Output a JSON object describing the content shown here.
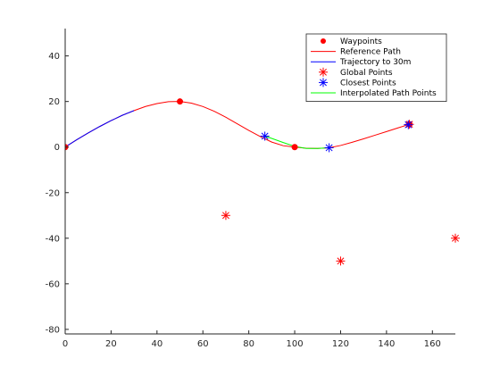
{
  "chart_data": {
    "type": "line",
    "title": "",
    "xlabel": "",
    "ylabel": "",
    "xlim": [
      0,
      170
    ],
    "ylim": [
      -82,
      52
    ],
    "xticks": [
      0,
      20,
      40,
      60,
      80,
      100,
      120,
      140,
      160
    ],
    "yticks": [
      -80,
      -60,
      -40,
      -20,
      0,
      20,
      40
    ],
    "grid": false,
    "legend_position": "top-right",
    "series": [
      {
        "name": "Waypoints",
        "kind": "marker-dot",
        "color": "#ff0000",
        "x": [
          0,
          50,
          100,
          150
        ],
        "y": [
          0,
          20,
          0,
          10
        ]
      },
      {
        "name": "Reference Path",
        "kind": "line",
        "color": "#ff0000",
        "x": [
          0,
          5,
          10,
          15,
          20,
          25,
          30,
          35,
          40,
          45,
          50,
          55,
          60,
          65,
          70,
          75,
          80,
          85,
          90,
          95,
          100,
          105,
          110,
          115,
          120,
          125,
          130,
          135,
          140,
          145,
          150
        ],
        "y": [
          0,
          3.2,
          6.2,
          9.0,
          11.6,
          14.0,
          16.0,
          17.8,
          19.1,
          19.9,
          20.0,
          19.3,
          17.8,
          15.7,
          13.1,
          10.2,
          7.3,
          4.6,
          2.2,
          0.6,
          0.0,
          -0.5,
          -0.6,
          -0.3,
          0.7,
          2.1,
          3.6,
          5.2,
          6.8,
          8.4,
          10.0
        ]
      },
      {
        "name": "Trajectory to 30m",
        "kind": "line",
        "color": "#0000ff",
        "x": [
          0,
          5,
          10,
          15,
          20,
          25,
          30
        ],
        "y": [
          0,
          3.2,
          6.2,
          9.0,
          11.6,
          14.0,
          16.0
        ]
      },
      {
        "name": "Global Points",
        "kind": "marker-star",
        "color": "#ff0000",
        "x": [
          70,
          120,
          170,
          150
        ],
        "y": [
          -30,
          -50,
          -40,
          10
        ]
      },
      {
        "name": "Closest Points",
        "kind": "marker-star",
        "color": "#0000ff",
        "x": [
          87,
          115,
          149.5
        ],
        "y": [
          4.8,
          -0.3,
          9.8
        ]
      },
      {
        "name": "Interpolated Path Points",
        "kind": "line",
        "color": "#00ff00",
        "x": [
          87,
          90,
          95,
          100,
          105,
          110,
          115
        ],
        "y": [
          4.8,
          3.8,
          2.0,
          0.3,
          -0.6,
          -0.6,
          -0.3
        ]
      }
    ]
  }
}
